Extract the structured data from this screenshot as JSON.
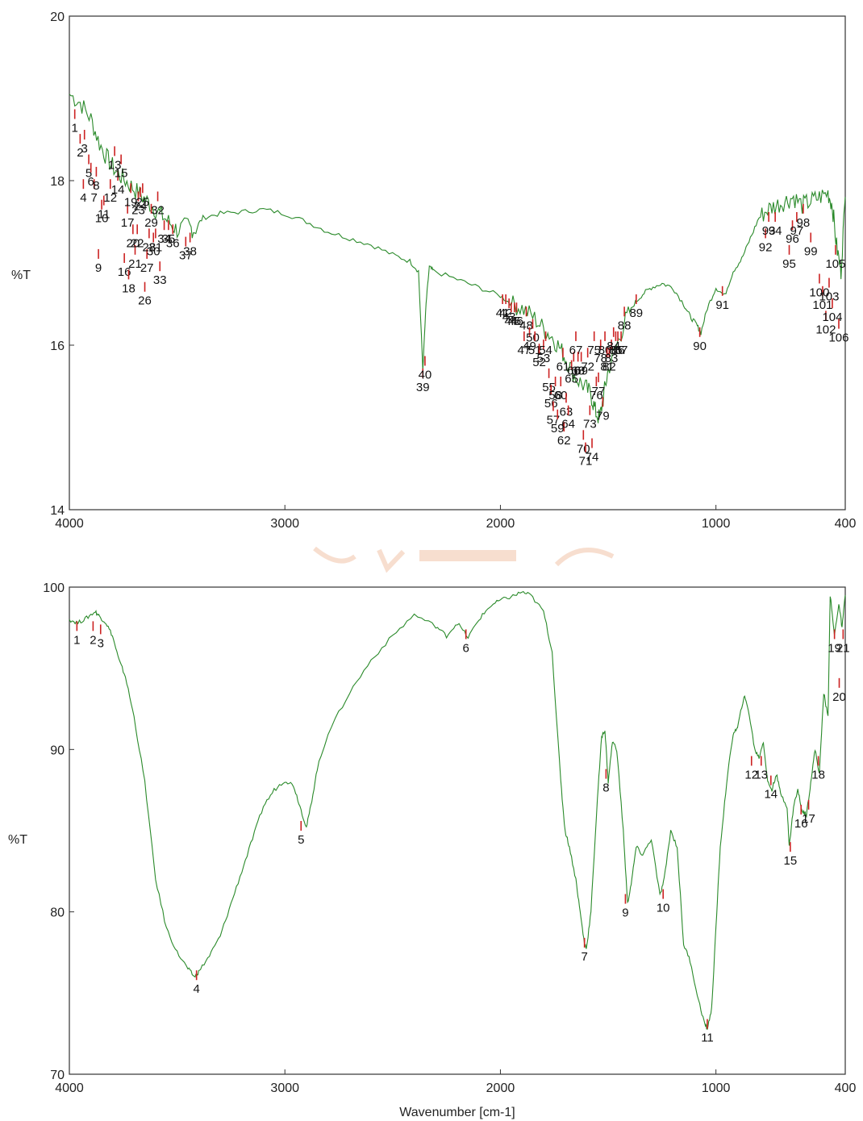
{
  "colors": {
    "spectrum": "#2a8a2a",
    "peak_marker": "#cc2222",
    "axis": "#333333",
    "watermark": "#f2c4a8"
  },
  "chart_data": [
    {
      "type": "line",
      "title": "",
      "xlabel": "",
      "ylabel": "%T",
      "xlim": [
        4000,
        400
      ],
      "ylim": [
        14,
        20
      ],
      "x_ticks": [
        "4000",
        "3000",
        "2000",
        "1000",
        "400"
      ],
      "y_ticks": [
        "14",
        "16",
        "18",
        "20"
      ],
      "grid": false,
      "series": [
        {
          "x": [
            4000,
            3950,
            3900,
            3860,
            3820,
            3780,
            3740,
            3700,
            3660,
            3620,
            3580,
            3540,
            3500,
            3450,
            3420,
            3380,
            3300,
            3200,
            3100,
            3000,
            2900,
            2800,
            2700,
            2600,
            2500,
            2420,
            2380,
            2360,
            2345,
            2330,
            2310,
            2200,
            2100,
            2000,
            1950,
            1900,
            1850,
            1800,
            1760,
            1720,
            1690,
            1650,
            1610,
            1580,
            1560,
            1540,
            1520,
            1500,
            1460,
            1420,
            1380,
            1340,
            1300,
            1250,
            1200,
            1150,
            1120,
            1090,
            1070,
            1040,
            1000,
            960,
            920,
            880,
            840,
            800,
            760,
            720,
            680,
            640,
            600,
            560,
            520,
            480,
            460,
            440,
            420,
            400
          ],
          "y": [
            19.05,
            18.95,
            18.75,
            18.45,
            18.25,
            18.1,
            18.0,
            17.9,
            17.8,
            17.7,
            17.6,
            17.5,
            17.4,
            17.45,
            17.4,
            17.55,
            17.6,
            17.62,
            17.65,
            17.6,
            17.5,
            17.38,
            17.3,
            17.22,
            17.1,
            17.02,
            16.9,
            15.7,
            16.5,
            16.95,
            16.9,
            16.8,
            16.7,
            16.6,
            16.5,
            16.45,
            16.35,
            16.2,
            16.1,
            15.95,
            15.8,
            15.6,
            15.5,
            15.4,
            15.2,
            15.1,
            15.4,
            15.7,
            16.0,
            16.3,
            16.5,
            16.62,
            16.7,
            16.75,
            16.7,
            16.5,
            16.35,
            16.25,
            16.15,
            16.45,
            16.7,
            16.6,
            16.9,
            17.05,
            17.3,
            17.55,
            17.65,
            17.7,
            17.75,
            17.8,
            17.7,
            17.75,
            17.8,
            17.85,
            17.7,
            17.2,
            16.9,
            17.8
          ]
        }
      ],
      "peaks": [
        {
          "label": "1",
          "x": 3975,
          "y": 18.75
        },
        {
          "label": "2",
          "x": 3950,
          "y": 18.45
        },
        {
          "label": "3",
          "x": 3930,
          "y": 18.5
        },
        {
          "label": "4",
          "x": 3935,
          "y": 17.9
        },
        {
          "label": "5",
          "x": 3910,
          "y": 18.2
        },
        {
          "label": "6",
          "x": 3900,
          "y": 18.1
        },
        {
          "label": "7",
          "x": 3885,
          "y": 17.9
        },
        {
          "label": "8",
          "x": 3875,
          "y": 18.05
        },
        {
          "label": "9",
          "x": 3865,
          "y": 17.05
        },
        {
          "label": "10",
          "x": 3850,
          "y": 17.65
        },
        {
          "label": "11",
          "x": 3840,
          "y": 17.7
        },
        {
          "label": "12",
          "x": 3810,
          "y": 17.9
        },
        {
          "label": "13",
          "x": 3790,
          "y": 18.3
        },
        {
          "label": "14",
          "x": 3775,
          "y": 18.0
        },
        {
          "label": "15",
          "x": 3760,
          "y": 18.2
        },
        {
          "label": "16",
          "x": 3745,
          "y": 17.0
        },
        {
          "label": "17",
          "x": 3730,
          "y": 17.6
        },
        {
          "label": "18",
          "x": 3725,
          "y": 16.8
        },
        {
          "label": "19",
          "x": 3715,
          "y": 17.85
        },
        {
          "label": "20",
          "x": 3705,
          "y": 17.35
        },
        {
          "label": "21",
          "x": 3695,
          "y": 17.1
        },
        {
          "label": "22",
          "x": 3685,
          "y": 17.35
        },
        {
          "label": "23",
          "x": 3680,
          "y": 17.75
        },
        {
          "label": "24",
          "x": 3670,
          "y": 17.8
        },
        {
          "label": "25",
          "x": 3660,
          "y": 17.85
        },
        {
          "label": "26",
          "x": 3650,
          "y": 16.65
        },
        {
          "label": "27",
          "x": 3640,
          "y": 17.05
        },
        {
          "label": "28",
          "x": 3630,
          "y": 17.3
        },
        {
          "label": "29",
          "x": 3620,
          "y": 17.6
        },
        {
          "label": "30",
          "x": 3610,
          "y": 17.25
        },
        {
          "label": "31",
          "x": 3600,
          "y": 17.3
        },
        {
          "label": "32",
          "x": 3590,
          "y": 17.75
        },
        {
          "label": "33",
          "x": 3580,
          "y": 16.9
        },
        {
          "label": "34",
          "x": 3560,
          "y": 17.4
        },
        {
          "label": "35",
          "x": 3540,
          "y": 17.4
        },
        {
          "label": "36",
          "x": 3520,
          "y": 17.35
        },
        {
          "label": "37",
          "x": 3460,
          "y": 17.2
        },
        {
          "label": "38",
          "x": 3440,
          "y": 17.25
        },
        {
          "label": "39",
          "x": 2360,
          "y": 15.6
        },
        {
          "label": "40",
          "x": 2350,
          "y": 15.75
        },
        {
          "label": "41",
          "x": 1990,
          "y": 16.5
        },
        {
          "label": "42",
          "x": 1975,
          "y": 16.5
        },
        {
          "label": "43",
          "x": 1960,
          "y": 16.45
        },
        {
          "label": "44",
          "x": 1950,
          "y": 16.4
        },
        {
          "label": "45",
          "x": 1935,
          "y": 16.4
        },
        {
          "label": "46",
          "x": 1925,
          "y": 16.4
        },
        {
          "label": "47",
          "x": 1890,
          "y": 16.05
        },
        {
          "label": "48",
          "x": 1880,
          "y": 16.35
        },
        {
          "label": "49",
          "x": 1865,
          "y": 16.1
        },
        {
          "label": "50",
          "x": 1850,
          "y": 16.2
        },
        {
          "label": "51",
          "x": 1840,
          "y": 16.05
        },
        {
          "label": "52",
          "x": 1820,
          "y": 15.9
        },
        {
          "label": "53",
          "x": 1800,
          "y": 15.95
        },
        {
          "label": "54",
          "x": 1790,
          "y": 16.05
        },
        {
          "label": "55",
          "x": 1775,
          "y": 15.6
        },
        {
          "label": "56",
          "x": 1765,
          "y": 15.4
        },
        {
          "label": "57",
          "x": 1755,
          "y": 15.2
        },
        {
          "label": "58",
          "x": 1745,
          "y": 15.5
        },
        {
          "label": "59",
          "x": 1735,
          "y": 15.1
        },
        {
          "label": "60",
          "x": 1720,
          "y": 15.5
        },
        {
          "label": "61",
          "x": 1710,
          "y": 15.85
        },
        {
          "label": "62",
          "x": 1705,
          "y": 14.95
        },
        {
          "label": "63",
          "x": 1695,
          "y": 15.3
        },
        {
          "label": "64",
          "x": 1685,
          "y": 15.15
        },
        {
          "label": "65",
          "x": 1670,
          "y": 15.7
        },
        {
          "label": "66",
          "x": 1660,
          "y": 15.8
        },
        {
          "label": "67",
          "x": 1650,
          "y": 16.05
        },
        {
          "label": "68",
          "x": 1640,
          "y": 15.8
        },
        {
          "label": "69",
          "x": 1625,
          "y": 15.8
        },
        {
          "label": "70",
          "x": 1615,
          "y": 14.85
        },
        {
          "label": "71",
          "x": 1605,
          "y": 14.7
        },
        {
          "label": "72",
          "x": 1595,
          "y": 15.85
        },
        {
          "label": "73",
          "x": 1585,
          "y": 15.15
        },
        {
          "label": "74",
          "x": 1575,
          "y": 14.75
        },
        {
          "label": "75",
          "x": 1565,
          "y": 16.05
        },
        {
          "label": "76",
          "x": 1555,
          "y": 15.5
        },
        {
          "label": "77",
          "x": 1545,
          "y": 15.55
        },
        {
          "label": "78",
          "x": 1535,
          "y": 15.95
        },
        {
          "label": "79",
          "x": 1525,
          "y": 15.25
        },
        {
          "label": "80",
          "x": 1515,
          "y": 16.05
        },
        {
          "label": "81",
          "x": 1505,
          "y": 15.85
        },
        {
          "label": "82",
          "x": 1495,
          "y": 15.85
        },
        {
          "label": "83",
          "x": 1485,
          "y": 15.95
        },
        {
          "label": "84",
          "x": 1475,
          "y": 16.1
        },
        {
          "label": "85",
          "x": 1465,
          "y": 16.05
        },
        {
          "label": "86",
          "x": 1455,
          "y": 16.05
        },
        {
          "label": "87",
          "x": 1440,
          "y": 16.05
        },
        {
          "label": "88",
          "x": 1425,
          "y": 16.35
        },
        {
          "label": "89",
          "x": 1370,
          "y": 16.5
        },
        {
          "label": "90",
          "x": 1075,
          "y": 16.1
        },
        {
          "label": "91",
          "x": 970,
          "y": 16.6
        },
        {
          "label": "92",
          "x": 770,
          "y": 17.3
        },
        {
          "label": "93",
          "x": 755,
          "y": 17.5
        },
        {
          "label": "94",
          "x": 725,
          "y": 17.5
        },
        {
          "label": "95",
          "x": 660,
          "y": 17.1
        },
        {
          "label": "96",
          "x": 645,
          "y": 17.4
        },
        {
          "label": "97",
          "x": 625,
          "y": 17.5
        },
        {
          "label": "98",
          "x": 595,
          "y": 17.6
        },
        {
          "label": "99",
          "x": 560,
          "y": 17.25
        },
        {
          "label": "100",
          "x": 520,
          "y": 16.75
        },
        {
          "label": "101",
          "x": 505,
          "y": 16.6
        },
        {
          "label": "102",
          "x": 490,
          "y": 16.3
        },
        {
          "label": "103",
          "x": 475,
          "y": 16.7
        },
        {
          "label": "104",
          "x": 460,
          "y": 16.45
        },
        {
          "label": "105",
          "x": 445,
          "y": 17.1
        },
        {
          "label": "106",
          "x": 430,
          "y": 16.2
        }
      ]
    },
    {
      "type": "line",
      "title": "",
      "xlabel": "Wavenumber [cm-1]",
      "ylabel": "%T",
      "xlim": [
        4000,
        400
      ],
      "ylim": [
        70,
        100
      ],
      "x_ticks": [
        "4000",
        "3000",
        "2000",
        "1000",
        "400"
      ],
      "y_ticks": [
        "70",
        "80",
        "90",
        "100"
      ],
      "grid": false,
      "series": [
        {
          "x": [
            4000,
            3960,
            3920,
            3880,
            3860,
            3830,
            3800,
            3770,
            3740,
            3700,
            3650,
            3600,
            3550,
            3500,
            3450,
            3420,
            3400,
            3350,
            3300,
            3250,
            3200,
            3150,
            3100,
            3050,
            3000,
            2960,
            2930,
            2900,
            2880,
            2850,
            2800,
            2700,
            2600,
            2500,
            2400,
            2300,
            2250,
            2200,
            2150,
            2100,
            2050,
            2000,
            1950,
            1900,
            1860,
            1800,
            1760,
            1720,
            1700,
            1680,
            1650,
            1630,
            1610,
            1600,
            1580,
            1550,
            1530,
            1515,
            1500,
            1480,
            1460,
            1430,
            1410,
            1390,
            1370,
            1340,
            1300,
            1260,
            1240,
            1210,
            1180,
            1150,
            1120,
            1080,
            1050,
            1040,
            1020,
            1000,
            980,
            950,
            920,
            900,
            870,
            850,
            820,
            800,
            780,
            760,
            740,
            720,
            700,
            670,
            660,
            640,
            620,
            600,
            580,
            560,
            540,
            520,
            500,
            480,
            470,
            450,
            430,
            415,
            400
          ],
          "y": [
            98.0,
            97.8,
            98.1,
            98.5,
            98.2,
            97.8,
            97.0,
            95.5,
            94.5,
            92.0,
            88.0,
            82.0,
            79.0,
            77.5,
            76.5,
            76.0,
            76.3,
            77.3,
            78.5,
            80.5,
            82.5,
            84.5,
            86.5,
            87.5,
            88.1,
            87.8,
            86.5,
            85.2,
            86.5,
            88.8,
            91.0,
            93.5,
            95.5,
            97.0,
            98.3,
            97.6,
            97.0,
            97.8,
            96.9,
            98.0,
            98.8,
            99.2,
            99.4,
            99.7,
            99.5,
            98.5,
            96.0,
            88.0,
            85.0,
            84.0,
            82.0,
            80.0,
            78.0,
            77.8,
            80.0,
            87.0,
            90.8,
            91.2,
            88.0,
            90.5,
            90.0,
            85.0,
            80.5,
            82.0,
            84.0,
            83.5,
            84.5,
            81.0,
            82.0,
            85.0,
            84.0,
            78.0,
            77.0,
            74.5,
            73.0,
            72.8,
            74.0,
            79.0,
            84.0,
            88.0,
            91.0,
            91.3,
            93.3,
            92.5,
            90.0,
            89.5,
            90.5,
            88.0,
            87.5,
            88.5,
            87.3,
            86.5,
            84.0,
            86.5,
            87.5,
            86.2,
            86.0,
            88.0,
            90.0,
            88.5,
            93.5,
            92.0,
            99.5,
            97.0,
            99.0,
            97.5,
            99.5
          ]
        }
      ],
      "peaks": [
        {
          "label": "1",
          "x": 3965,
          "y": 97.3
        },
        {
          "label": "2",
          "x": 3890,
          "y": 97.3
        },
        {
          "label": "3",
          "x": 3855,
          "y": 97.1
        },
        {
          "label": "4",
          "x": 3410,
          "y": 75.8
        },
        {
          "label": "5",
          "x": 2925,
          "y": 85.0
        },
        {
          "label": "6",
          "x": 2160,
          "y": 96.8
        },
        {
          "label": "7",
          "x": 1610,
          "y": 77.8
        },
        {
          "label": "8",
          "x": 1510,
          "y": 88.2
        },
        {
          "label": "9",
          "x": 1420,
          "y": 80.5
        },
        {
          "label": "10",
          "x": 1245,
          "y": 80.8
        },
        {
          "label": "11",
          "x": 1040,
          "y": 72.8
        },
        {
          "label": "12",
          "x": 835,
          "y": 89.0
        },
        {
          "label": "13",
          "x": 790,
          "y": 89.0
        },
        {
          "label": "14",
          "x": 745,
          "y": 87.8
        },
        {
          "label": "15",
          "x": 655,
          "y": 83.7
        },
        {
          "label": "16",
          "x": 605,
          "y": 86.0
        },
        {
          "label": "17",
          "x": 570,
          "y": 86.3
        },
        {
          "label": "18",
          "x": 525,
          "y": 89.0
        },
        {
          "label": "19",
          "x": 450,
          "y": 96.8
        },
        {
          "label": "20",
          "x": 428,
          "y": 93.8
        },
        {
          "label": "21",
          "x": 410,
          "y": 96.8
        }
      ]
    }
  ]
}
